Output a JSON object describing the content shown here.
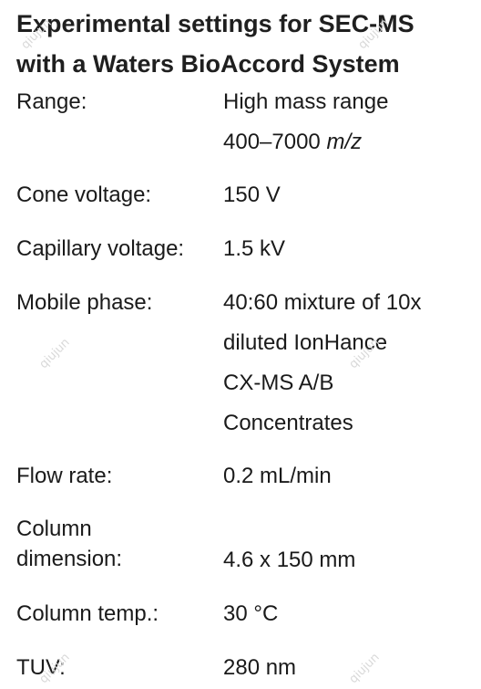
{
  "title_line1": "Experimental settings for SEC-MS",
  "title_line2": "with a Waters BioAccord System",
  "rows": {
    "range": {
      "label": "Range:",
      "value1": "High mass range",
      "value2_num": "400–7000 ",
      "value2_unit": "m/z"
    },
    "cone": {
      "label": "Cone voltage:",
      "value": "150 V"
    },
    "capillary": {
      "label": "Capillary voltage:",
      "value": "1.5 kV"
    },
    "mobile": {
      "label": "Mobile phase:",
      "lines": [
        "40:60 mixture of 10x",
        "diluted IonHance",
        "CX-MS A/B",
        "Concentrates"
      ]
    },
    "flow": {
      "label": "Flow rate:",
      "value": "0.2 mL/min"
    },
    "column_dim": {
      "label_line1": "Column",
      "label_line2": "dimension:",
      "value": "4.6 x 150 mm"
    },
    "column_temp": {
      "label": "Column temp.:",
      "value": "30 °C"
    },
    "tuv": {
      "label": "TUV:",
      "value": "280 nm"
    }
  },
  "watermark": "qiujun"
}
